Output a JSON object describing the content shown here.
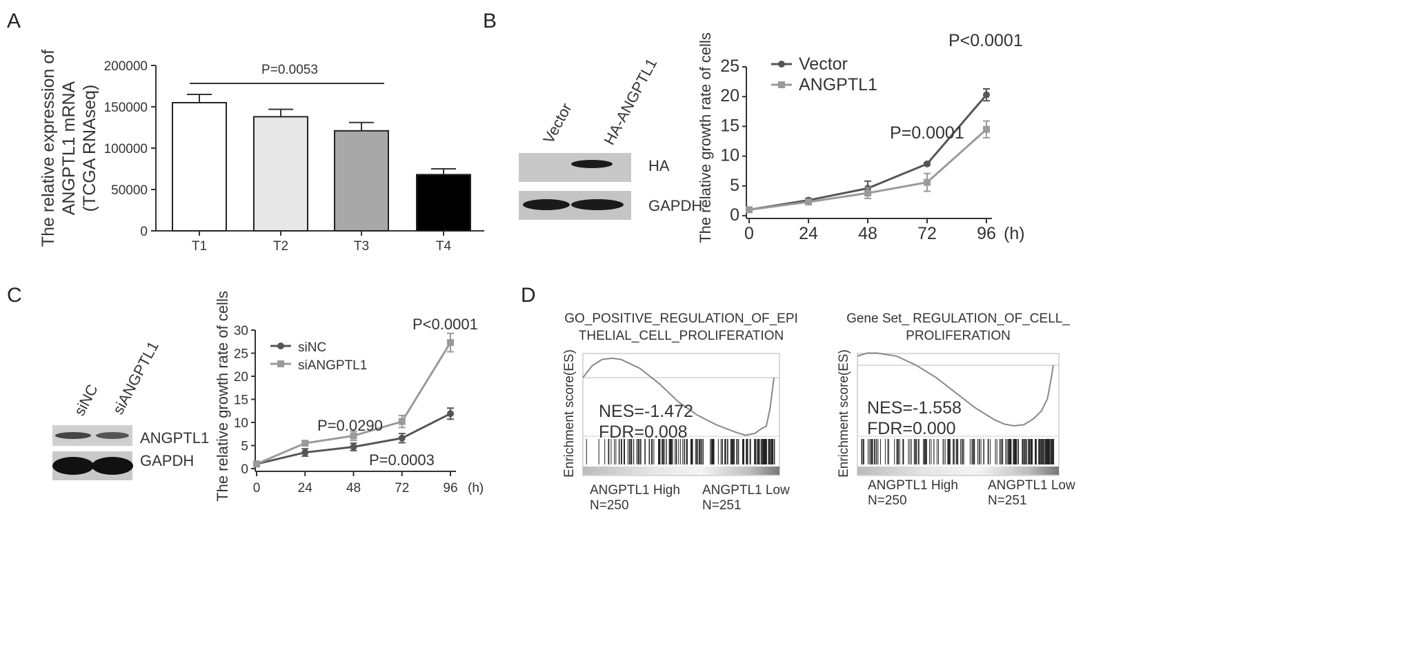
{
  "panels": {
    "a": "A",
    "b": "B",
    "c": "C",
    "d": "D"
  },
  "western_b": {
    "lanes": [
      "Vector",
      "HA-ANGPTL1"
    ],
    "bands": [
      "HA",
      "GAPDH"
    ]
  },
  "western_c": {
    "lanes": [
      "siNC",
      "siANGPTL1"
    ],
    "bands": [
      "ANGPTL1",
      "GAPDH"
    ]
  },
  "chart_data": [
    {
      "type": "bar",
      "panel": "A",
      "categories": [
        "T1",
        "T2",
        "T3",
        "T4"
      ],
      "values": [
        155000,
        138000,
        121000,
        68000
      ],
      "errors": [
        10000,
        9000,
        10000,
        7000
      ],
      "colors": [
        "#ffffff",
        "#e8e8e8",
        "#a8a8a8",
        "#000000"
      ],
      "ylabel": [
        "The relative expression of",
        "ANGPTL1 mRNA",
        "(TCGA RNAseq)"
      ],
      "ylim": [
        0,
        200000
      ],
      "yticks": [
        "0",
        "50000",
        "100000",
        "150000",
        "200000"
      ],
      "annotation": "P=0.0053"
    },
    {
      "type": "line",
      "panel": "B",
      "x": [
        0,
        24,
        48,
        72,
        96
      ],
      "xticks": [
        "0",
        "24",
        "48",
        "72",
        "96"
      ],
      "xunit": "(h)",
      "ylabel": "The relative growth rate of cells",
      "ylim": [
        0,
        25
      ],
      "yticks": [
        "0",
        "5",
        "10",
        "15",
        "20",
        "25"
      ],
      "series": [
        {
          "name": "Vector",
          "values": [
            1,
            2.6,
            4.6,
            8.7,
            20.3
          ],
          "errors": [
            0.2,
            0.3,
            1.2,
            0.2,
            1.0
          ],
          "color": "#555555",
          "marker": "circle"
        },
        {
          "name": "ANGPTL1",
          "values": [
            1,
            2.3,
            3.8,
            5.6,
            14.5
          ],
          "errors": [
            0.1,
            0.3,
            0.9,
            1.5,
            1.4
          ],
          "color": "#9a9a9a",
          "marker": "square"
        }
      ],
      "annotations": [
        "P=0.0001",
        "P<0.0001"
      ]
    },
    {
      "type": "line",
      "panel": "C",
      "x": [
        0,
        24,
        48,
        72,
        96
      ],
      "xticks": [
        "0",
        "24",
        "48",
        "72",
        "96"
      ],
      "xunit": "(h)",
      "ylabel": "The relative growth rate of cells",
      "ylim": [
        0,
        30
      ],
      "yticks": [
        "0",
        "5",
        "10",
        "15",
        "20",
        "25",
        "30"
      ],
      "series": [
        {
          "name": "siNC",
          "values": [
            1,
            3.5,
            4.7,
            6.6,
            11.9
          ],
          "errors": [
            0.2,
            0.8,
            0.8,
            1.0,
            1.2
          ],
          "color": "#555555",
          "marker": "circle"
        },
        {
          "name": "siANGPTL1",
          "values": [
            1,
            5.5,
            7.1,
            10.2,
            27.3
          ],
          "errors": [
            0.2,
            0.4,
            1.0,
            1.3,
            2.0
          ],
          "color": "#9a9a9a",
          "marker": "square"
        }
      ],
      "annotations": [
        "P=0.0290",
        "P=0.0003",
        "P<0.0001"
      ]
    },
    {
      "type": "line",
      "panel": "D-left",
      "title": [
        "GO_POSITIVE_REGULATION_OF_EPI",
        "THELIAL_CELL_PROLIFERATION"
      ],
      "ylabel": "Enrichment score(ES)",
      "nes": "NES=-1.472",
      "fdr": "FDR=0.008",
      "high": "ANGPTL1 High",
      "high_n": "N=250",
      "low": "ANGPTL1 Low",
      "low_n": "N=251",
      "x": [
        0,
        0.05,
        0.1,
        0.15,
        0.2,
        0.3,
        0.4,
        0.5,
        0.6,
        0.7,
        0.8,
        0.85,
        0.9,
        0.93,
        0.96,
        0.98,
        1
      ],
      "es": [
        0.0,
        0.2,
        0.3,
        0.32,
        0.3,
        0.15,
        -0.1,
        -0.4,
        -0.62,
        -0.78,
        -0.9,
        -0.95,
        -0.92,
        -0.85,
        -0.8,
        -0.5,
        0
      ]
    },
    {
      "type": "line",
      "panel": "D-right",
      "title": [
        "Gene Set_ REGULATION_OF_CELL_",
        "PROLIFERATION"
      ],
      "ylabel": "Enrichment score(ES)",
      "nes": "NES=-1.558",
      "fdr": "FDR=0.000",
      "high": "ANGPTL1 High",
      "high_n": "N=250",
      "low": "ANGPTL1 Low",
      "low_n": "N=251",
      "x": [
        0,
        0.05,
        0.1,
        0.2,
        0.3,
        0.4,
        0.5,
        0.6,
        0.7,
        0.75,
        0.8,
        0.85,
        0.9,
        0.94,
        0.97,
        0.99,
        1
      ],
      "es": [
        0.15,
        0.2,
        0.2,
        0.15,
        0.0,
        -0.2,
        -0.45,
        -0.7,
        -0.9,
        -0.97,
        -1.0,
        -0.98,
        -0.88,
        -0.75,
        -0.55,
        -0.2,
        0
      ]
    }
  ]
}
